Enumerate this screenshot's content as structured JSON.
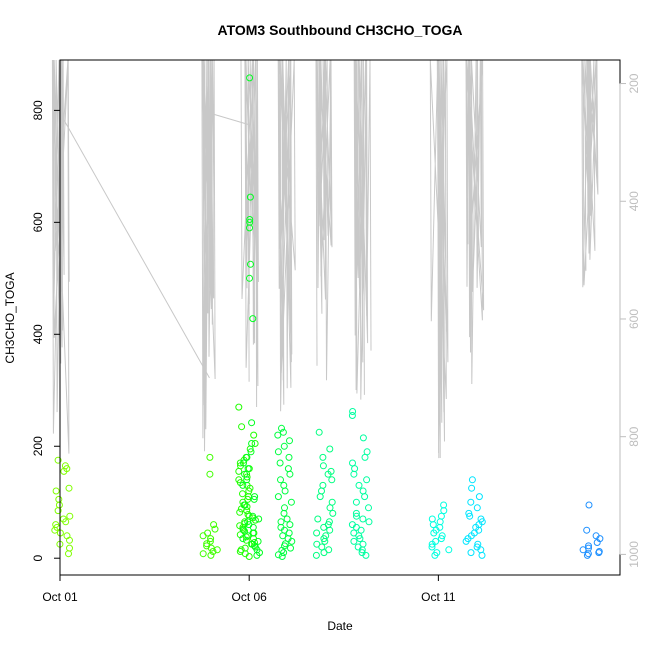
{
  "chart_data": {
    "type": "scatter",
    "title": "ATOM3 Southbound CH3CHO_TOGA",
    "xlabel": "Date",
    "ylabel": "CH3CHO_TOGA",
    "xlim": [
      0,
      14.8
    ],
    "x_ticks": [
      {
        "x": 0,
        "label": "Oct 01"
      },
      {
        "x": 5,
        "label": "Oct 06"
      },
      {
        "x": 10,
        "label": "Oct 11"
      }
    ],
    "ylim": [
      -30,
      890
    ],
    "y_ticks": [
      0,
      200,
      400,
      600,
      800
    ],
    "y2_ticks": [
      200,
      400,
      600,
      800,
      1000
    ],
    "y2lim": [
      1035,
      160
    ],
    "y2_color": "#bebebe",
    "grid": false,
    "legend": "none",
    "color_gradient": [
      "#7fff00",
      "#00ff00",
      "#00ff80",
      "#00ffff",
      "#00bfff",
      "#0080ff"
    ],
    "flight_groups": [
      {
        "date": "Oct 01",
        "x": 0.05,
        "color": "#80ff00",
        "values": [
          8,
          18,
          25,
          32,
          40,
          45,
          50,
          55,
          60,
          65,
          70,
          75,
          85,
          95,
          105,
          120,
          125,
          155,
          160,
          165,
          175
        ]
      },
      {
        "date": "Oct 04",
        "x": 3.95,
        "color": "#40ff00",
        "values": [
          5,
          8,
          12,
          15,
          18,
          22,
          26,
          30,
          35,
          40,
          45,
          52,
          60,
          150,
          180
        ]
      },
      {
        "date": "Oct 05",
        "x": 4.95,
        "color": "#20ff00",
        "values": [
          3,
          8,
          12,
          15,
          18,
          22,
          25,
          28,
          32,
          35,
          38,
          42,
          45,
          48,
          52,
          55,
          58,
          62,
          65,
          68,
          72,
          75,
          78,
          82,
          85,
          88,
          92,
          95,
          100,
          105,
          110,
          115,
          120,
          125,
          130,
          135,
          140,
          145,
          150,
          155,
          160,
          165,
          170,
          175,
          180,
          195,
          205,
          220,
          235,
          270
        ]
      },
      {
        "date": "Oct 06",
        "x": 5.05,
        "color": "#00ff20",
        "values": [
          5,
          10,
          15,
          20,
          25,
          30,
          35,
          40,
          45,
          50,
          55,
          60,
          65,
          70,
          75,
          95,
          105,
          110,
          130,
          140,
          150,
          160,
          170,
          180,
          190,
          205,
          242,
          428,
          500,
          525,
          590,
          600,
          605,
          645,
          858
        ]
      },
      {
        "date": "Oct 07",
        "x": 5.95,
        "color": "#00ff40",
        "values": [
          3,
          6,
          10,
          14,
          18,
          22,
          26,
          30,
          35,
          40,
          45,
          50,
          55,
          60,
          65,
          70,
          80,
          90,
          100,
          110,
          120,
          130,
          140,
          150,
          160,
          170,
          180,
          190,
          200,
          210,
          220,
          225,
          232
        ]
      },
      {
        "date": "Oct 08",
        "x": 7.0,
        "color": "#00ff80",
        "values": [
          5,
          10,
          15,
          20,
          25,
          30,
          35,
          40,
          45,
          50,
          55,
          60,
          65,
          70,
          80,
          90,
          100,
          110,
          120,
          130,
          140,
          150,
          155,
          165,
          180,
          195,
          225
        ]
      },
      {
        "date": "Oct 09",
        "x": 7.95,
        "color": "#00ffa0",
        "values": [
          5,
          10,
          15,
          20,
          25,
          30,
          35,
          40,
          45,
          50,
          55,
          60,
          65,
          70,
          75,
          80,
          90,
          100,
          110,
          120,
          130,
          140,
          150,
          160,
          170,
          180,
          190,
          215,
          255,
          262
        ]
      },
      {
        "date": "Oct 11",
        "x": 10.05,
        "color": "#00ffe0",
        "values": [
          5,
          10,
          15,
          20,
          25,
          30,
          35,
          40,
          45,
          50,
          55,
          60,
          65,
          70,
          75,
          85,
          95
        ]
      },
      {
        "date": "Oct 12",
        "x": 10.95,
        "color": "#00e5ff",
        "values": [
          5,
          10,
          15,
          20,
          25,
          30,
          35,
          40,
          45,
          50,
          55,
          60,
          65,
          70,
          75,
          80,
          90,
          100,
          110,
          125,
          140
        ]
      },
      {
        "date": "Oct 14",
        "x": 14.05,
        "color": "#1e90ff",
        "values": [
          5,
          8,
          10,
          12,
          15,
          18,
          22,
          28,
          35,
          40,
          50,
          95
        ]
      }
    ],
    "altitude_trace": {
      "axis": "right",
      "color": "#c8c8c8",
      "profiles": [
        {
          "x": 0.0,
          "top": 160,
          "bottom": 840,
          "connect_to": {
            "x": 3.95,
            "y": 700
          }
        },
        {
          "x": 3.95,
          "top": 160,
          "bottom": 830,
          "connect_to": {
            "x": 5.0,
            "y": 270
          }
        },
        {
          "x": 5.0,
          "top": 160,
          "bottom": 760
        },
        {
          "x": 6.0,
          "top": 160,
          "bottom": 760
        },
        {
          "x": 7.0,
          "top": 160,
          "bottom": 760
        },
        {
          "x": 8.0,
          "top": 160,
          "bottom": 760
        },
        {
          "x": 10.0,
          "top": 160,
          "bottom": 840
        },
        {
          "x": 10.95,
          "top": 160,
          "bottom": 740
        },
        {
          "x": 14.0,
          "top": 160,
          "bottom": 610
        }
      ]
    }
  }
}
